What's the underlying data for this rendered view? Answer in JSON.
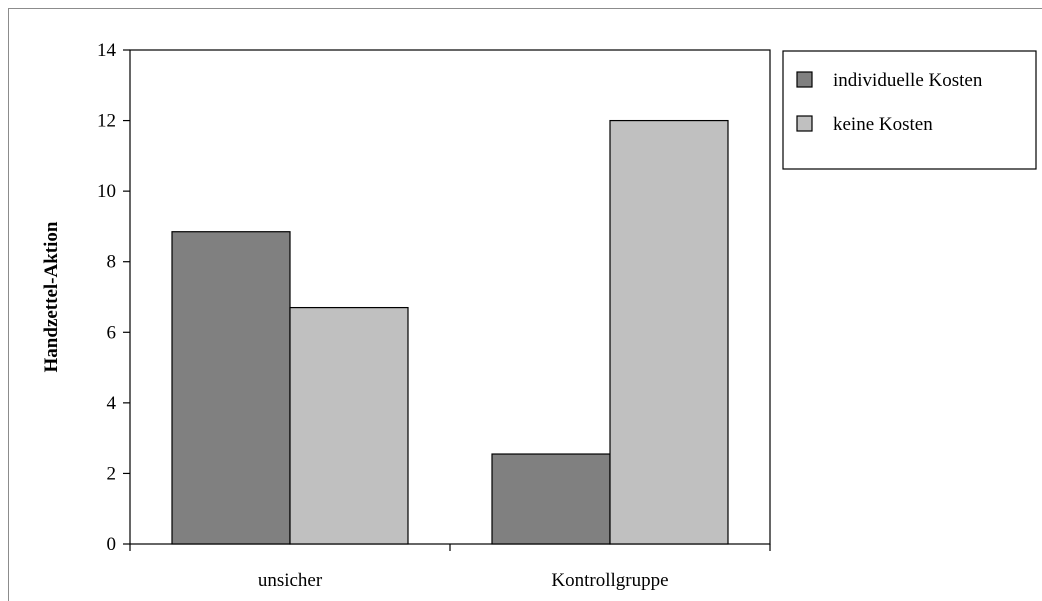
{
  "chart_data": {
    "type": "bar",
    "categories": [
      "unsicher",
      "Kontrollgruppe"
    ],
    "series": [
      {
        "name": "individuelle Kosten",
        "values": [
          8.85,
          2.55
        ],
        "color": "#808080"
      },
      {
        "name": "keine Kosten",
        "values": [
          6.7,
          12.0
        ],
        "color": "#c0c0c0"
      }
    ],
    "ylabel": "Handzettel-Aktion",
    "xlabel": "",
    "ylim": [
      0,
      14
    ],
    "yticks": [
      0,
      2,
      4,
      6,
      8,
      10,
      12,
      14
    ],
    "grid": false,
    "legend": "top-right"
  }
}
